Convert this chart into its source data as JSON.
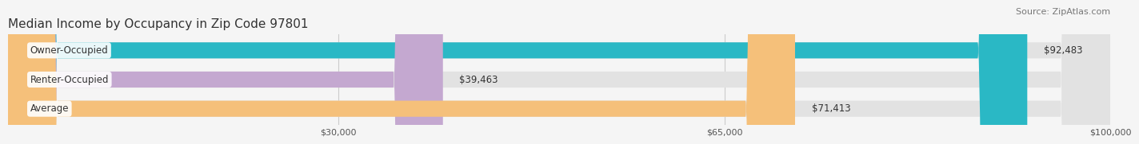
{
  "title": "Median Income by Occupancy in Zip Code 97801",
  "source": "Source: ZipAtlas.com",
  "categories": [
    "Owner-Occupied",
    "Renter-Occupied",
    "Average"
  ],
  "values": [
    92483,
    39463,
    71413
  ],
  "bar_colors": [
    "#2ab8c5",
    "#c4a8d0",
    "#f5c07a"
  ],
  "bar_labels": [
    "$92,483",
    "$39,463",
    "$71,413"
  ],
  "x_max": 100000,
  "x_ticks": [
    30000,
    65000,
    100000
  ],
  "x_tick_labels": [
    "$30,000",
    "$65,000",
    "$100,000"
  ],
  "background_color": "#f5f5f5",
  "bar_background_color": "#e2e2e2",
  "title_fontsize": 11,
  "source_fontsize": 8,
  "label_fontsize": 8.5,
  "tick_fontsize": 8
}
